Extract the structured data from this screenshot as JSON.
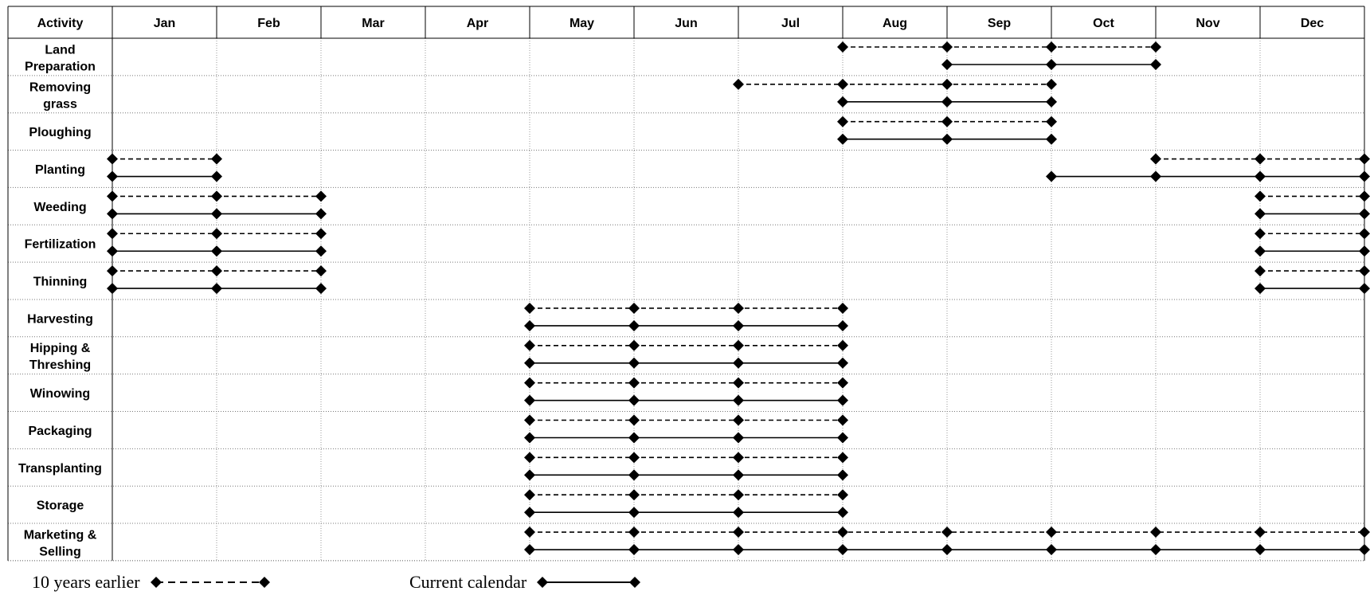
{
  "chart_data": {
    "type": "table",
    "header_activity": "Activity",
    "months": [
      "Jan",
      "Feb",
      "Mar",
      "Apr",
      "May",
      "Jun",
      "Jul",
      "Aug",
      "Sep",
      "Oct",
      "Nov",
      "Dec"
    ],
    "activities": [
      {
        "name": [
          "Land",
          "Preparation"
        ],
        "earlier": [
          [
            8,
            11
          ]
        ],
        "current": [
          [
            9,
            11
          ]
        ]
      },
      {
        "name": [
          "Removing",
          "grass"
        ],
        "earlier": [
          [
            7,
            10
          ]
        ],
        "current": [
          [
            8,
            10
          ]
        ]
      },
      {
        "name": [
          "Ploughing"
        ],
        "earlier": [
          [
            8,
            10
          ]
        ],
        "current": [
          [
            8,
            10
          ]
        ]
      },
      {
        "name": [
          "Planting"
        ],
        "earlier": [
          [
            1,
            2
          ],
          [
            11,
            13
          ]
        ],
        "current": [
          [
            1,
            2
          ],
          [
            10,
            13
          ]
        ]
      },
      {
        "name": [
          "Weeding"
        ],
        "earlier": [
          [
            1,
            3
          ],
          [
            12,
            13
          ]
        ],
        "current": [
          [
            1,
            3
          ],
          [
            12,
            13
          ]
        ]
      },
      {
        "name": [
          "Fertilization"
        ],
        "earlier": [
          [
            1,
            3
          ],
          [
            12,
            13
          ]
        ],
        "current": [
          [
            1,
            3
          ],
          [
            12,
            13
          ]
        ]
      },
      {
        "name": [
          "Thinning"
        ],
        "earlier": [
          [
            1,
            3
          ],
          [
            12,
            13
          ]
        ],
        "current": [
          [
            1,
            3
          ],
          [
            12,
            13
          ]
        ]
      },
      {
        "name": [
          "Harvesting"
        ],
        "earlier": [
          [
            5,
            8
          ]
        ],
        "current": [
          [
            5,
            8
          ]
        ]
      },
      {
        "name": [
          "Hipping &",
          "Threshing"
        ],
        "earlier": [
          [
            5,
            8
          ]
        ],
        "current": [
          [
            5,
            8
          ]
        ]
      },
      {
        "name": [
          "Winowing"
        ],
        "earlier": [
          [
            5,
            8
          ]
        ],
        "current": [
          [
            5,
            8
          ]
        ]
      },
      {
        "name": [
          "Packaging"
        ],
        "earlier": [
          [
            5,
            8
          ]
        ],
        "current": [
          [
            5,
            8
          ]
        ]
      },
      {
        "name": [
          "Transplanting"
        ],
        "earlier": [
          [
            5,
            8
          ]
        ],
        "current": [
          [
            5,
            8
          ]
        ]
      },
      {
        "name": [
          "Storage"
        ],
        "earlier": [
          [
            5,
            8
          ]
        ],
        "current": [
          [
            5,
            8
          ]
        ]
      },
      {
        "name": [
          "Marketing &",
          "Selling"
        ],
        "earlier": [
          [
            5,
            13
          ]
        ],
        "current": [
          [
            5,
            13
          ]
        ]
      }
    ]
  },
  "legend": {
    "earlier_label": "10 years earlier",
    "current_label": "Current calendar"
  }
}
